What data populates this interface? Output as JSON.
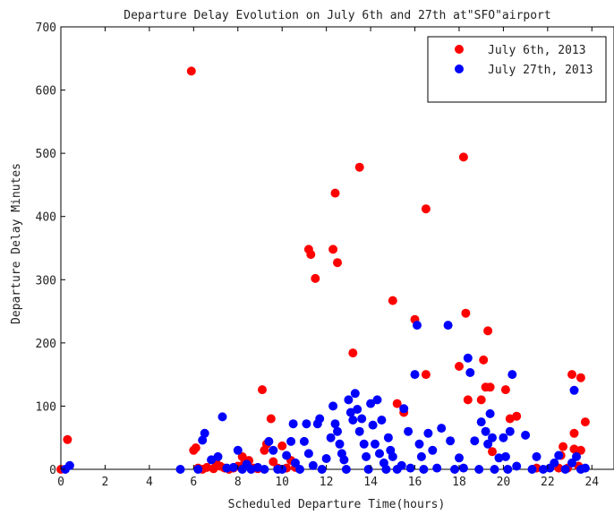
{
  "chart_data": {
    "type": "scatter",
    "title": "Departure Delay Evolution on July 6th and 27th at\"SFO\"airport",
    "xlabel": "Scheduled Departure Time(hours)",
    "ylabel": "Departure Delay Minutes",
    "xlim": [
      0,
      25
    ],
    "ylim": [
      0,
      700
    ],
    "xticks": [
      "0",
      "2",
      "4",
      "6",
      "8",
      "10",
      "12",
      "14",
      "16",
      "18",
      "20",
      "22",
      "24"
    ],
    "yticks": [
      "0",
      "100",
      "200",
      "300",
      "400",
      "500",
      "600",
      "700"
    ],
    "grid": false,
    "legend_position": "top-right",
    "series": [
      {
        "name": "July 6th, 2013",
        "color": "#ff0000",
        "points": [
          [
            0.0,
            0
          ],
          [
            0.3,
            47
          ],
          [
            5.9,
            630
          ],
          [
            6.0,
            30
          ],
          [
            6.1,
            34
          ],
          [
            6.2,
            2
          ],
          [
            6.4,
            0
          ],
          [
            6.6,
            3
          ],
          [
            6.9,
            1
          ],
          [
            7.0,
            12
          ],
          [
            7.2,
            5
          ],
          [
            7.4,
            2
          ],
          [
            7.6,
            0
          ],
          [
            7.8,
            2
          ],
          [
            8.0,
            5
          ],
          [
            8.2,
            20
          ],
          [
            8.3,
            10
          ],
          [
            8.5,
            14
          ],
          [
            8.7,
            2
          ],
          [
            8.9,
            1
          ],
          [
            9.1,
            126
          ],
          [
            9.2,
            30
          ],
          [
            9.3,
            40
          ],
          [
            9.5,
            80
          ],
          [
            9.6,
            12
          ],
          [
            9.8,
            2
          ],
          [
            10.0,
            37
          ],
          [
            10.2,
            2
          ],
          [
            10.4,
            14
          ],
          [
            10.6,
            3
          ],
          [
            11.2,
            348
          ],
          [
            11.3,
            340
          ],
          [
            11.5,
            302
          ],
          [
            12.3,
            348
          ],
          [
            12.4,
            437
          ],
          [
            12.5,
            327
          ],
          [
            13.2,
            184
          ],
          [
            13.5,
            478
          ],
          [
            15.0,
            267
          ],
          [
            15.2,
            104
          ],
          [
            15.5,
            90
          ],
          [
            16.0,
            237
          ],
          [
            16.5,
            412
          ],
          [
            16.5,
            150
          ],
          [
            18.0,
            163
          ],
          [
            18.2,
            494
          ],
          [
            18.3,
            247
          ],
          [
            18.4,
            110
          ],
          [
            19.0,
            110
          ],
          [
            19.1,
            173
          ],
          [
            19.2,
            130
          ],
          [
            19.3,
            219
          ],
          [
            19.4,
            130
          ],
          [
            19.5,
            28
          ],
          [
            20.1,
            126
          ],
          [
            20.3,
            80
          ],
          [
            20.6,
            84
          ],
          [
            21.5,
            2
          ],
          [
            22.5,
            2
          ],
          [
            22.6,
            22
          ],
          [
            22.7,
            36
          ],
          [
            22.9,
            2
          ],
          [
            23.1,
            150
          ],
          [
            23.2,
            57
          ],
          [
            23.2,
            32
          ],
          [
            23.4,
            5
          ],
          [
            23.5,
            30
          ],
          [
            23.5,
            145
          ],
          [
            23.7,
            75
          ]
        ]
      },
      {
        "name": "July 27th, 2013",
        "color": "#0000ff",
        "points": [
          [
            0.2,
            0
          ],
          [
            0.4,
            6
          ],
          [
            5.4,
            0
          ],
          [
            6.2,
            0
          ],
          [
            6.4,
            46
          ],
          [
            6.5,
            57
          ],
          [
            6.8,
            15
          ],
          [
            7.1,
            20
          ],
          [
            7.3,
            83
          ],
          [
            7.5,
            2
          ],
          [
            7.8,
            3
          ],
          [
            8.0,
            30
          ],
          [
            8.2,
            0
          ],
          [
            8.4,
            8
          ],
          [
            8.6,
            0
          ],
          [
            8.9,
            3
          ],
          [
            9.2,
            0
          ],
          [
            9.4,
            44
          ],
          [
            9.6,
            30
          ],
          [
            9.8,
            0
          ],
          [
            10.0,
            0
          ],
          [
            10.2,
            22
          ],
          [
            10.4,
            44
          ],
          [
            10.5,
            72
          ],
          [
            10.6,
            10
          ],
          [
            10.8,
            0
          ],
          [
            11.0,
            44
          ],
          [
            11.1,
            72
          ],
          [
            11.2,
            25
          ],
          [
            11.4,
            6
          ],
          [
            11.6,
            72
          ],
          [
            11.7,
            80
          ],
          [
            11.8,
            0
          ],
          [
            12.0,
            17
          ],
          [
            12.2,
            50
          ],
          [
            12.3,
            100
          ],
          [
            12.4,
            72
          ],
          [
            12.5,
            60
          ],
          [
            12.6,
            40
          ],
          [
            12.7,
            25
          ],
          [
            12.8,
            15
          ],
          [
            12.9,
            0
          ],
          [
            13.0,
            110
          ],
          [
            13.1,
            90
          ],
          [
            13.2,
            78
          ],
          [
            13.3,
            120
          ],
          [
            13.4,
            95
          ],
          [
            13.5,
            60
          ],
          [
            13.6,
            80
          ],
          [
            13.7,
            40
          ],
          [
            13.8,
            20
          ],
          [
            13.9,
            0
          ],
          [
            14.0,
            104
          ],
          [
            14.1,
            70
          ],
          [
            14.2,
            40
          ],
          [
            14.3,
            110
          ],
          [
            14.4,
            25
          ],
          [
            14.5,
            78
          ],
          [
            14.6,
            10
          ],
          [
            14.7,
            0
          ],
          [
            14.8,
            50
          ],
          [
            14.9,
            30
          ],
          [
            15.0,
            20
          ],
          [
            15.2,
            0
          ],
          [
            15.4,
            6
          ],
          [
            15.5,
            96
          ],
          [
            15.7,
            60
          ],
          [
            15.8,
            2
          ],
          [
            16.0,
            150
          ],
          [
            16.1,
            228
          ],
          [
            16.2,
            40
          ],
          [
            16.3,
            20
          ],
          [
            16.4,
            0
          ],
          [
            16.6,
            57
          ],
          [
            16.8,
            30
          ],
          [
            17.0,
            2
          ],
          [
            17.2,
            65
          ],
          [
            17.5,
            228
          ],
          [
            17.6,
            45
          ],
          [
            17.8,
            0
          ],
          [
            18.0,
            18
          ],
          [
            18.2,
            2
          ],
          [
            18.4,
            176
          ],
          [
            18.5,
            153
          ],
          [
            18.7,
            45
          ],
          [
            18.9,
            0
          ],
          [
            19.0,
            75
          ],
          [
            19.2,
            60
          ],
          [
            19.3,
            40
          ],
          [
            19.4,
            88
          ],
          [
            19.5,
            50
          ],
          [
            19.6,
            0
          ],
          [
            19.8,
            18
          ],
          [
            20.0,
            50
          ],
          [
            20.1,
            20
          ],
          [
            20.2,
            0
          ],
          [
            20.3,
            60
          ],
          [
            20.4,
            150
          ],
          [
            20.6,
            5
          ],
          [
            21.0,
            54
          ],
          [
            21.3,
            0
          ],
          [
            21.5,
            20
          ],
          [
            21.8,
            0
          ],
          [
            22.1,
            2
          ],
          [
            22.3,
            10
          ],
          [
            22.5,
            22
          ],
          [
            22.8,
            0
          ],
          [
            23.1,
            10
          ],
          [
            23.2,
            125
          ],
          [
            23.3,
            20
          ],
          [
            23.5,
            0
          ],
          [
            23.7,
            2
          ]
        ]
      }
    ]
  }
}
